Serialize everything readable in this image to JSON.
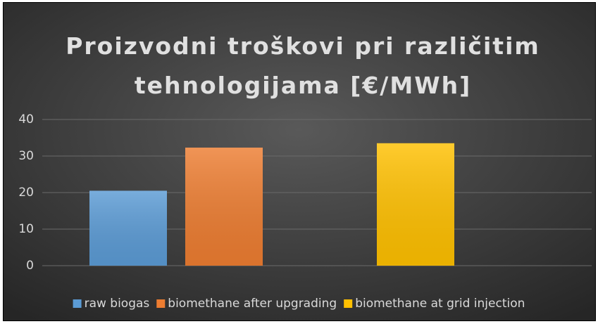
{
  "chart_data": {
    "type": "bar",
    "title": "Proizvodni troškovi pri različitim tehnologijama [€/MWh]",
    "categories": [
      null
    ],
    "series": [
      {
        "name": "raw biogas",
        "color": "#5b9bd5",
        "values": [
          20.5
        ]
      },
      {
        "name": "biomethane after upgrading",
        "color": "#ed7d31",
        "values": [
          32.3
        ]
      },
      {
        "name": "biomethane at grid injection",
        "color": "#ffc000",
        "values": [
          33.5
        ]
      }
    ],
    "ylim": [
      0,
      40
    ],
    "yticks": [
      0,
      10,
      20,
      30,
      40
    ],
    "grid": true,
    "legend": "bottom"
  }
}
